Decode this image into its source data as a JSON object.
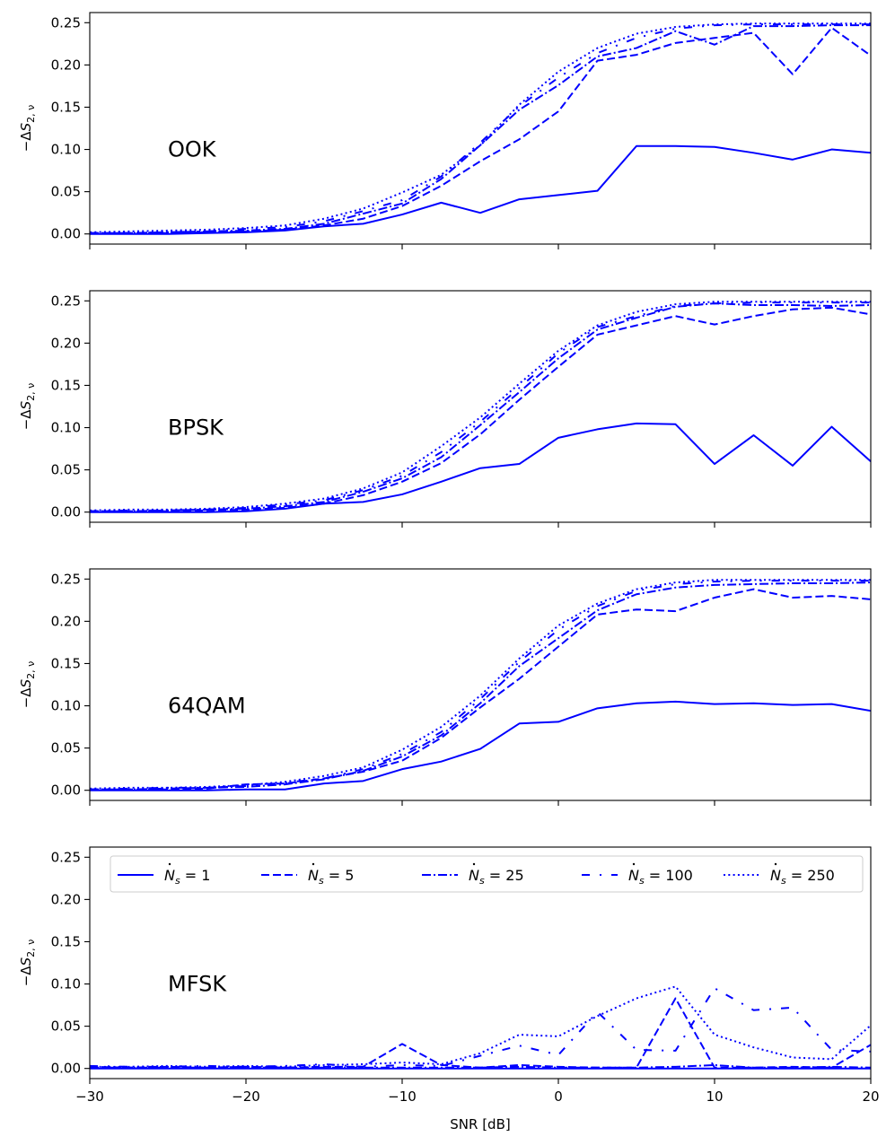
{
  "chart_data": {
    "type": "line",
    "x": [
      -30,
      -27.5,
      -25,
      -22.5,
      -20,
      -17.5,
      -15,
      -12.5,
      -10,
      -7.5,
      -5,
      -2.5,
      0,
      2.5,
      5,
      7.5,
      10,
      12.5,
      15,
      17.5,
      20
    ],
    "xlabel": "SNR [dB]",
    "xlim": [
      -30,
      20
    ],
    "xticks": [
      -30,
      -20,
      -10,
      0,
      10,
      20
    ],
    "xtick_labels": [
      "−30",
      "−20",
      "−10",
      "0",
      "10",
      "20"
    ],
    "ylabel": "−ΔS₂,ᵥ",
    "ylabel_parts": {
      "prefix": "−Δ",
      "var": "S",
      "sub": "2, ν"
    },
    "ylim": [
      -0.012,
      0.262
    ],
    "yticks": [
      0.0,
      0.05,
      0.1,
      0.15,
      0.2,
      0.25
    ],
    "ytick_labels": [
      "0.00",
      "0.05",
      "0.10",
      "0.15",
      "0.20",
      "0.25"
    ],
    "series_color": "#0000ff",
    "legend": {
      "location": "top, inside bottom panel",
      "entries": [
        {
          "prefix": "N",
          "sub": "s",
          "eq": " = ",
          "value": "1",
          "style": "solid"
        },
        {
          "prefix": "N",
          "sub": "s",
          "eq": " = ",
          "value": "5",
          "style": "dashed"
        },
        {
          "prefix": "N",
          "sub": "s",
          "eq": " = ",
          "value": "25",
          "style": "dashdot"
        },
        {
          "prefix": "N",
          "sub": "s",
          "eq": " = ",
          "value": "100",
          "style": "loosedashdot"
        },
        {
          "prefix": "N",
          "sub": "s",
          "eq": " = ",
          "value": "250",
          "style": "dotted"
        }
      ]
    },
    "panels": [
      {
        "label": "OOK",
        "series": [
          {
            "name": "N_s = 1",
            "style": "solid",
            "values": [
              0.0,
              0.0,
              0.0,
              0.001,
              0.002,
              0.004,
              0.009,
              0.012,
              0.023,
              0.037,
              0.025,
              0.041,
              0.046,
              0.051,
              0.104,
              0.104,
              0.103,
              0.096,
              0.088,
              0.1,
              0.096
            ]
          },
          {
            "name": "N_s = 5",
            "style": "dashed",
            "values": [
              0.001,
              0.001,
              0.001,
              0.002,
              0.003,
              0.005,
              0.01,
              0.018,
              0.033,
              0.057,
              0.086,
              0.112,
              0.145,
              0.205,
              0.212,
              0.226,
              0.232,
              0.238,
              0.189,
              0.244,
              0.211
            ]
          },
          {
            "name": "N_s = 25",
            "style": "dashdot",
            "values": [
              0.001,
              0.001,
              0.002,
              0.003,
              0.004,
              0.006,
              0.012,
              0.024,
              0.036,
              0.065,
              0.105,
              0.147,
              0.176,
              0.21,
              0.22,
              0.24,
              0.224,
              0.246,
              0.246,
              0.247,
              0.247
            ]
          },
          {
            "name": "N_s = 100",
            "style": "loosedashdot",
            "values": [
              0.001,
              0.001,
              0.002,
              0.003,
              0.006,
              0.008,
              0.015,
              0.027,
              0.04,
              0.068,
              0.108,
              0.151,
              0.185,
              0.214,
              0.232,
              0.243,
              0.247,
              0.248,
              0.248,
              0.248,
              0.248
            ]
          },
          {
            "name": "N_s = 250",
            "style": "dotted",
            "values": [
              0.002,
              0.003,
              0.004,
              0.005,
              0.007,
              0.01,
              0.018,
              0.03,
              0.049,
              0.07,
              0.105,
              0.153,
              0.192,
              0.22,
              0.237,
              0.245,
              0.248,
              0.249,
              0.249,
              0.249,
              0.249
            ]
          }
        ]
      },
      {
        "label": "BPSK",
        "series": [
          {
            "name": "N_s = 1",
            "style": "solid",
            "values": [
              0.0,
              0.0,
              0.0,
              0.0,
              0.001,
              0.004,
              0.01,
              0.012,
              0.021,
              0.036,
              0.052,
              0.057,
              0.088,
              0.098,
              0.105,
              0.104,
              0.057,
              0.091,
              0.055,
              0.101,
              0.06
            ]
          },
          {
            "name": "N_s = 5",
            "style": "dashed",
            "values": [
              0.001,
              0.001,
              0.001,
              0.002,
              0.003,
              0.005,
              0.01,
              0.02,
              0.036,
              0.058,
              0.092,
              0.133,
              0.172,
              0.21,
              0.221,
              0.232,
              0.222,
              0.232,
              0.24,
              0.242,
              0.234
            ]
          },
          {
            "name": "N_s = 25",
            "style": "dashdot",
            "values": [
              0.001,
              0.001,
              0.002,
              0.003,
              0.004,
              0.007,
              0.012,
              0.024,
              0.04,
              0.065,
              0.103,
              0.142,
              0.182,
              0.216,
              0.23,
              0.243,
              0.247,
              0.245,
              0.245,
              0.244,
              0.245
            ]
          },
          {
            "name": "N_s = 100",
            "style": "loosedashdot",
            "values": [
              0.001,
              0.002,
              0.002,
              0.003,
              0.005,
              0.009,
              0.014,
              0.026,
              0.043,
              0.071,
              0.107,
              0.147,
              0.188,
              0.219,
              0.232,
              0.244,
              0.247,
              0.248,
              0.248,
              0.248,
              0.248
            ]
          },
          {
            "name": "N_s = 250",
            "style": "dotted",
            "values": [
              0.002,
              0.003,
              0.003,
              0.004,
              0.006,
              0.01,
              0.016,
              0.028,
              0.047,
              0.078,
              0.112,
              0.152,
              0.191,
              0.221,
              0.237,
              0.246,
              0.249,
              0.249,
              0.249,
              0.249,
              0.249
            ]
          }
        ]
      },
      {
        "label": "64QAM",
        "series": [
          {
            "name": "N_s = 1",
            "style": "solid",
            "values": [
              0.0,
              0.0,
              0.0,
              0.0,
              0.001,
              0.001,
              0.008,
              0.011,
              0.025,
              0.034,
              0.049,
              0.079,
              0.081,
              0.097,
              0.103,
              0.105,
              0.102,
              0.103,
              0.101,
              0.102,
              0.094
            ]
          },
          {
            "name": "N_s = 5",
            "style": "dashed",
            "values": [
              0.001,
              0.001,
              0.001,
              0.002,
              0.007,
              0.008,
              0.014,
              0.022,
              0.035,
              0.062,
              0.098,
              0.132,
              0.17,
              0.208,
              0.214,
              0.212,
              0.228,
              0.238,
              0.228,
              0.23,
              0.226
            ]
          },
          {
            "name": "N_s = 25",
            "style": "dashdot",
            "values": [
              0.001,
              0.001,
              0.002,
              0.003,
              0.004,
              0.007,
              0.013,
              0.023,
              0.04,
              0.065,
              0.103,
              0.147,
              0.18,
              0.213,
              0.232,
              0.24,
              0.243,
              0.244,
              0.245,
              0.245,
              0.246
            ]
          },
          {
            "name": "N_s = 100",
            "style": "loosedashdot",
            "values": [
              0.001,
              0.002,
              0.003,
              0.003,
              0.005,
              0.009,
              0.014,
              0.025,
              0.043,
              0.069,
              0.108,
              0.152,
              0.19,
              0.218,
              0.236,
              0.244,
              0.247,
              0.248,
              0.248,
              0.248,
              0.248
            ]
          },
          {
            "name": "N_s = 250",
            "style": "dotted",
            "values": [
              0.002,
              0.003,
              0.003,
              0.004,
              0.006,
              0.01,
              0.017,
              0.027,
              0.048,
              0.075,
              0.112,
              0.156,
              0.195,
              0.221,
              0.238,
              0.246,
              0.249,
              0.249,
              0.249,
              0.249,
              0.249
            ]
          }
        ]
      },
      {
        "label": "MFSK",
        "series": [
          {
            "name": "N_s = 1",
            "style": "solid",
            "values": [
              0.0,
              0.0,
              0.0,
              0.0,
              0.0,
              0.0,
              0.0,
              0.0,
              0.0,
              0.0,
              0.0,
              0.0,
              0.0,
              0.0,
              0.0,
              0.0,
              0.0,
              0.0,
              0.0,
              0.0,
              0.0
            ]
          },
          {
            "name": "N_s = 5",
            "style": "dashed",
            "values": [
              0.002,
              0.001,
              0.002,
              0.001,
              0.002,
              0.001,
              0.002,
              0.002,
              0.029,
              0.004,
              0.001,
              0.004,
              0.002,
              0.001,
              0.001,
              0.083,
              0.001,
              0.001,
              0.002,
              0.001,
              0.028
            ]
          },
          {
            "name": "N_s = 25",
            "style": "dashdot",
            "values": [
              0.001,
              0.001,
              0.001,
              0.001,
              0.001,
              0.001,
              0.001,
              0.001,
              0.001,
              0.001,
              0.001,
              0.002,
              0.001,
              0.001,
              0.001,
              0.002,
              0.004,
              0.001,
              0.001,
              0.002,
              0.001
            ]
          },
          {
            "name": "N_s = 100",
            "style": "loosedashdot",
            "values": [
              0.003,
              0.002,
              0.002,
              0.003,
              0.002,
              0.003,
              0.005,
              0.002,
              0.004,
              0.003,
              0.015,
              0.027,
              0.016,
              0.067,
              0.022,
              0.021,
              0.095,
              0.069,
              0.072,
              0.022,
              0.02
            ]
          },
          {
            "name": "N_s = 250",
            "style": "dotted",
            "values": [
              0.002,
              0.002,
              0.003,
              0.002,
              0.003,
              0.002,
              0.004,
              0.005,
              0.007,
              0.005,
              0.018,
              0.04,
              0.038,
              0.062,
              0.083,
              0.097,
              0.04,
              0.025,
              0.013,
              0.011,
              0.051
            ]
          }
        ]
      }
    ]
  }
}
